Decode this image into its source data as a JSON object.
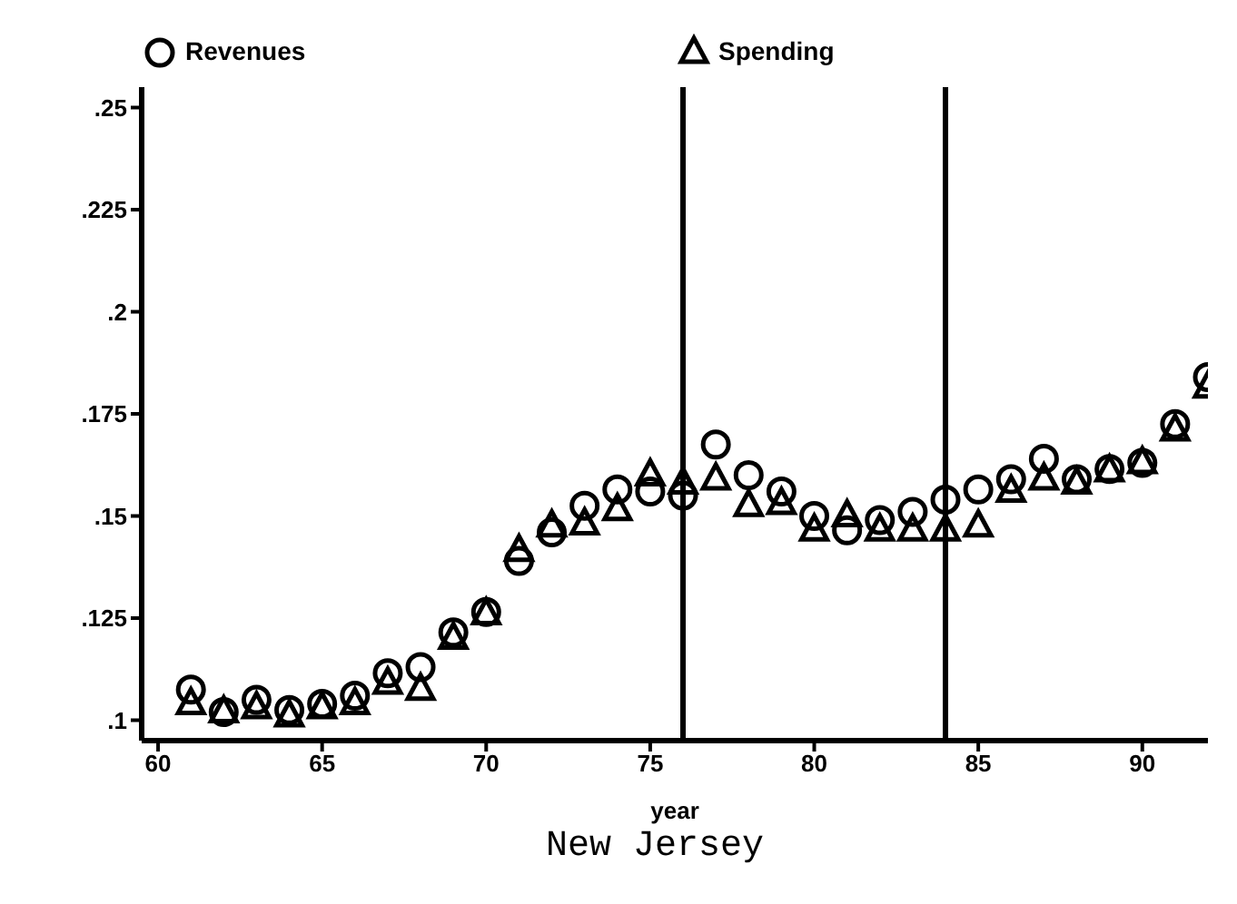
{
  "chart_data": {
    "type": "scatter",
    "title": "New Jersey",
    "xlabel": "year",
    "x": [
      61,
      62,
      63,
      64,
      65,
      66,
      67,
      68,
      69,
      70,
      71,
      72,
      73,
      74,
      75,
      76,
      77,
      78,
      79,
      80,
      81,
      82,
      83,
      84,
      85,
      86,
      87,
      88,
      89,
      90,
      91,
      92
    ],
    "series": [
      {
        "name": "Revenues",
        "color": "#000000",
        "marker": "circle",
        "values": [
          0.1075,
          0.102,
          0.105,
          0.1025,
          0.104,
          0.106,
          0.1115,
          0.113,
          0.1215,
          0.1265,
          0.139,
          0.146,
          0.1525,
          0.1565,
          0.156,
          0.155,
          0.1675,
          0.16,
          0.156,
          0.15,
          0.1465,
          0.149,
          0.151,
          0.154,
          0.1565,
          0.159,
          0.164,
          0.159,
          0.1615,
          0.163,
          0.1725,
          0.184
        ]
      },
      {
        "name": "Spending",
        "color": "#000000",
        "marker": "triangle",
        "values": [
          0.104,
          0.102,
          0.103,
          0.101,
          0.103,
          0.104,
          0.109,
          0.1075,
          0.12,
          0.126,
          0.1415,
          0.1475,
          0.148,
          0.1515,
          0.16,
          0.158,
          0.159,
          0.1525,
          0.153,
          0.1465,
          0.15,
          0.1465,
          0.1465,
          0.1465,
          0.1475,
          0.156,
          0.159,
          0.158,
          0.161,
          0.163,
          0.171,
          0.1815
        ]
      }
    ],
    "xlim": [
      59.5,
      92
    ],
    "xticks": [
      60,
      65,
      70,
      75,
      80,
      85,
      90
    ],
    "ylim": [
      0.095,
      0.255
    ],
    "yticks": [
      {
        "value": 0.1,
        "label": ".1"
      },
      {
        "value": 0.125,
        "label": ".125"
      },
      {
        "value": 0.15,
        "label": ".15"
      },
      {
        "value": 0.175,
        "label": ".175"
      },
      {
        "value": 0.2,
        "label": ".2"
      },
      {
        "value": 0.225,
        "label": ".225"
      },
      {
        "value": 0.25,
        "label": ".25"
      }
    ],
    "ref_lines": [
      {
        "axis": "x",
        "value": 76,
        "color": "#000000"
      },
      {
        "axis": "x",
        "value": 84,
        "color": "#000000"
      }
    ],
    "grid": false,
    "legend": "top"
  }
}
